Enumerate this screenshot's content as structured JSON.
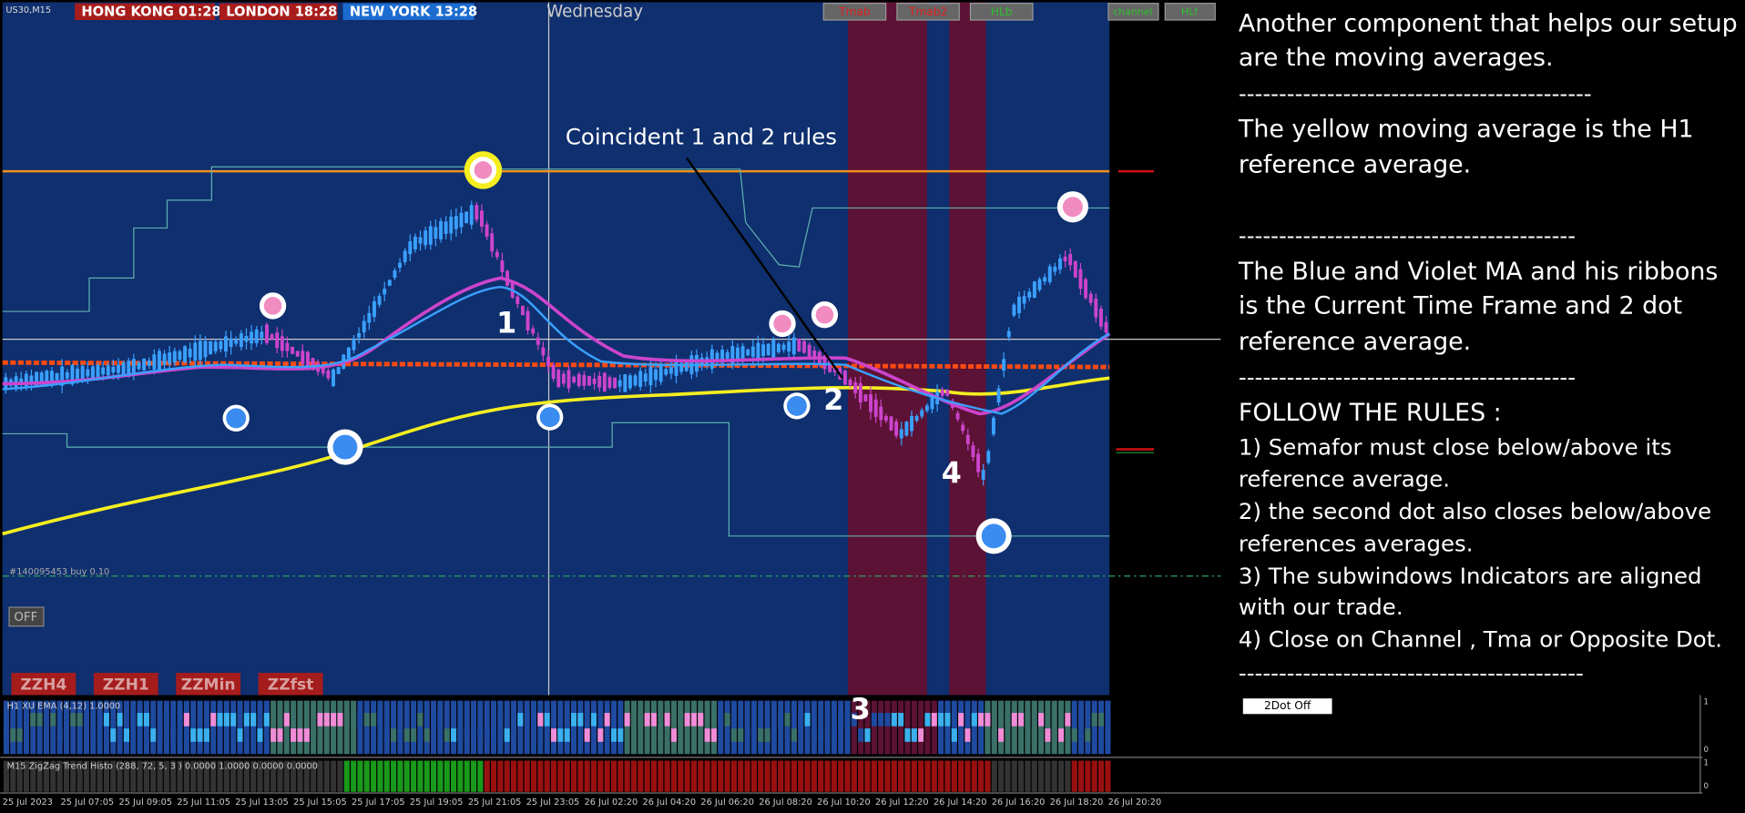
{
  "header": {
    "symbol": "US30,M15",
    "clocks": [
      "HONG KONG 01:28",
      "LONDON  18:28",
      "NEW YORK 13:28"
    ],
    "day": "Wednesday",
    "buttons_left": [
      "Tmab",
      "Tmab2",
      "HLb"
    ],
    "buttons_right": [
      "channel",
      "HLf"
    ]
  },
  "chart": {
    "annotation": "Coincident 1 and 2 rules",
    "markers": [
      "1",
      "2",
      "3",
      "4"
    ],
    "order": "#140095453 buy 0.10",
    "off_button": "OFF",
    "zz_buttons": [
      "ZZH4",
      "ZZH1",
      "ZZMin",
      "ZZfst"
    ]
  },
  "subwindows": [
    {
      "label": "H1 XU EMA (4,12) 1.0000",
      "button": "2Dot Off",
      "scale": [
        "1",
        "0"
      ]
    },
    {
      "label": "M15 ZigZag Trend Histo (288, 72, 5, 3 ) 0.0000 1.0000 0.0000 0.0000",
      "scale": [
        "1",
        "0"
      ]
    }
  ],
  "x_axis": [
    "25 Jul 2023",
    "25 Jul 07:05",
    "25 Jul 09:05",
    "25 Jul 11:05",
    "25 Jul 13:05",
    "25 Jul 15:05",
    "25 Jul 17:05",
    "25 Jul 19:05",
    "25 Jul 21:05",
    "25 Jul 23:05",
    "26 Jul 02:20",
    "26 Jul 04:20",
    "26 Jul 06:20",
    "26 Jul 08:20",
    "26 Jul 10:20",
    "26 Jul 12:20",
    "26 Jul 14:20",
    "26 Jul 16:20",
    "26 Jul 18:20",
    "26 Jul 20:20"
  ],
  "notes": [
    "Another component that helps our setup",
    "are the moving averages.",
    "--------------------------------------------",
    "The yellow moving average is the H1",
    "reference average.",
    "------------------------------------------",
    "The Blue and Violet MA and his ribbons",
    "is the Current Time Frame and 2 dot",
    "reference average.",
    "------------------------------------------",
    "FOLLOW THE RULES :",
    "1) Semafor must close below/above its",
    "reference average.",
    "2) the second dot also closes below/above",
    "references averages.",
    "3) The subwindows Indicators are aligned",
    "with our trade.",
    "4) Close on Channel , Tma or Opposite Dot.",
    "-------------------------------------------"
  ]
}
